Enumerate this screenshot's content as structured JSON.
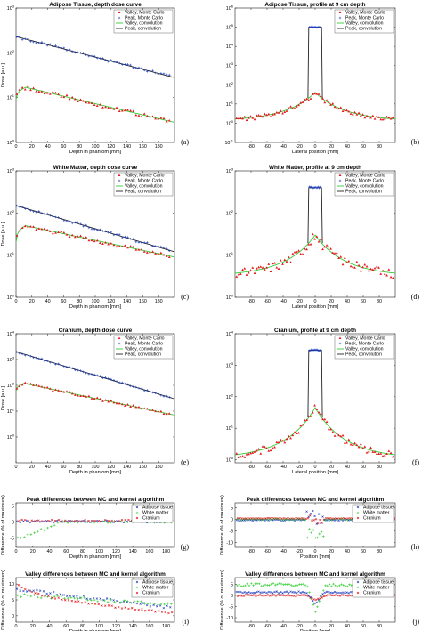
{
  "panels": [
    {
      "id": "a",
      "letter": "(a)",
      "type": "depth",
      "title": "Adipose Tissue, depth dose curve",
      "xlabel": "Depth in phantom [mm]",
      "ylabel": "Dose [a.u.]",
      "xlim": [
        0,
        200
      ],
      "xticks": [
        0,
        20,
        40,
        60,
        80,
        100,
        120,
        140,
        160,
        180
      ],
      "yticks": [
        {
          "v": 1,
          "e": "0"
        },
        {
          "v": 10,
          "e": "1"
        },
        {
          "v": 100,
          "e": "2"
        },
        {
          "v": 1000,
          "e": "3"
        }
      ],
      "ylim": [
        1,
        1000
      ],
      "ylog": true,
      "legend": [
        "Valley, Monte Carlo",
        "Peak, Monte Carlo",
        "Valley, convolution",
        "Peak, convolution"
      ],
      "legend_pos": "top-right",
      "peak": {
        "start": 230,
        "end": 28
      },
      "valley": {
        "start": 9,
        "max": 17,
        "max_at": 12,
        "end": 2.8
      }
    },
    {
      "id": "b",
      "letter": "(b)",
      "type": "profile",
      "title": "Adipose Tissue, profile at 9 cm depth",
      "xlabel": "Lateral position [mm]",
      "ylabel": "",
      "xlim": [
        -100,
        100
      ],
      "xticks": [
        -80,
        -60,
        -40,
        -20,
        0,
        20,
        40,
        60,
        80
      ],
      "yticks": [
        {
          "v": 0.1,
          "e": "-1"
        },
        {
          "v": 1,
          "e": "0"
        },
        {
          "v": 10,
          "e": "1"
        },
        {
          "v": 100,
          "e": "2"
        },
        {
          "v": 1000,
          "e": "3"
        },
        {
          "v": 10000,
          "e": "4"
        },
        {
          "v": 100000,
          "e": "5"
        },
        {
          "v": 1000000,
          "e": "6"
        }
      ],
      "ylim": [
        0.1,
        1000000
      ],
      "ylog": true,
      "legend": [
        "Valley, Monte Carlo",
        "Peak, Monte Carlo",
        "Valley, convolution",
        "Peak, convolution"
      ],
      "legend_pos": "top-right",
      "top_level": 100000,
      "center": 40,
      "edge": 1.5
    },
    {
      "id": "c",
      "letter": "(c)",
      "type": "depth",
      "title": "White Matter, depth dose curve",
      "xlabel": "Depth in phantom [mm]",
      "ylabel": "Dose [a.u.]",
      "xlim": [
        0,
        200
      ],
      "xticks": [
        0,
        20,
        40,
        60,
        80,
        100,
        120,
        140,
        160,
        180
      ],
      "yticks": [
        {
          "v": 1,
          "e": "0"
        },
        {
          "v": 10,
          "e": "1"
        },
        {
          "v": 100,
          "e": "2"
        },
        {
          "v": 1000,
          "e": "3"
        }
      ],
      "ylim": [
        1,
        1000
      ],
      "ylog": true,
      "legend": [
        "Valley, Monte Carlo",
        "Peak, Monte Carlo",
        "Valley, convolution",
        "Peak, convolution"
      ],
      "legend_pos": "top-right",
      "peak": {
        "start": 150,
        "end": 12
      },
      "valley": {
        "start": 20,
        "max": 50,
        "max_at": 12,
        "end": 9
      }
    },
    {
      "id": "d",
      "letter": "(d)",
      "type": "profile",
      "title": "White Matter, profile at 9 cm depth",
      "xlabel": "Lateral position [mm]",
      "ylabel": "",
      "xlim": [
        -100,
        100
      ],
      "xticks": [
        -80,
        -60,
        -40,
        -20,
        0,
        20,
        40,
        60,
        80
      ],
      "yticks": [
        {
          "v": 1,
          "e": "0"
        },
        {
          "v": 10,
          "e": "1"
        },
        {
          "v": 100,
          "e": "2"
        },
        {
          "v": 1000,
          "e": "3"
        }
      ],
      "ylim": [
        1,
        1000
      ],
      "ylog": true,
      "legend": [
        "Valley, Monte Carlo",
        "Peak, Monte Carlo",
        "Valley, convolution",
        "Peak, convolution"
      ],
      "legend_pos": "top-right",
      "top_level": 400,
      "center": 30,
      "edge": 3.5
    },
    {
      "id": "e",
      "letter": "(e)",
      "type": "depth",
      "title": "Cranium, depth dose curve",
      "xlabel": "Depth in phantom [mm]",
      "ylabel": "Dose [a.u.]",
      "xlim": [
        0,
        200
      ],
      "xticks": [
        0,
        20,
        40,
        60,
        80,
        100,
        120,
        140,
        160,
        180
      ],
      "yticks": [
        {
          "v": 1,
          "e": "0"
        },
        {
          "v": 10,
          "e": "1"
        },
        {
          "v": 100,
          "e": "2"
        },
        {
          "v": 1000,
          "e": "3"
        },
        {
          "v": 10000,
          "e": "4"
        }
      ],
      "ylim": [
        0.1,
        10000
      ],
      "ylog": true,
      "legend": [
        "Valley, Monte Carlo",
        "Peak, Monte Carlo",
        "Valley, convolution",
        "Peak, convolution"
      ],
      "legend_pos": "top-right",
      "peak": {
        "start": 2000,
        "end": 30
      },
      "valley": {
        "start": 60,
        "max": 120,
        "max_at": 10,
        "end": 7
      }
    },
    {
      "id": "f",
      "letter": "(f)",
      "type": "profile",
      "title": "Cranium, profile at 9 cm depth",
      "xlabel": "Lateral position [mm]",
      "ylabel": "",
      "xlim": [
        -100,
        100
      ],
      "xticks": [
        -80,
        -60,
        -40,
        -20,
        0,
        20,
        40,
        60,
        80
      ],
      "yticks": [
        {
          "v": 1,
          "e": "0"
        },
        {
          "v": 10,
          "e": "1"
        },
        {
          "v": 100,
          "e": "2"
        },
        {
          "v": 1000,
          "e": "3"
        },
        {
          "v": 10000,
          "e": "4"
        }
      ],
      "ylim": [
        0.8,
        10000
      ],
      "ylog": true,
      "legend": [
        "Valley, Monte Carlo",
        "Peak, Monte Carlo",
        "Valley, convolution",
        "Peak, convolution"
      ],
      "legend_pos": "top-right",
      "top_level": 3000,
      "center": 45,
      "edge": 1.3
    },
    {
      "id": "g",
      "letter": "(g)",
      "type": "diff_depth",
      "kind": "peak",
      "title": "Peak differences between MC and kernel algorithm",
      "xlabel": "Depth in phantom [mm]",
      "ylabel": "Difference (% of maximum)",
      "xlim": [
        0,
        190
      ],
      "xticks": [
        0,
        20,
        40,
        60,
        80,
        100,
        120,
        140,
        160,
        180
      ],
      "yticks": [
        {
          "v": -5,
          "t": "-5"
        },
        {
          "v": 0,
          "t": "0"
        },
        {
          "v": 5,
          "t": "5"
        }
      ],
      "ylim": [
        -8,
        6
      ],
      "ylog": false,
      "legend": [
        "Adipose tissue",
        "White matter",
        "Cranium"
      ],
      "legend_pos": "top-right"
    },
    {
      "id": "h",
      "letter": "(h)",
      "type": "diff_profile",
      "kind": "peak",
      "title": "Peak differences between MC and kernel algorithm",
      "xlabel": "Position [mm]",
      "ylabel": "Difference (% of maximum)",
      "xlim": [
        -100,
        100
      ],
      "xticks": [
        -80,
        -60,
        -40,
        -20,
        0,
        20,
        40,
        60,
        80
      ],
      "yticks": [
        {
          "v": -10,
          "t": "-10"
        },
        {
          "v": -5,
          "t": "-5"
        },
        {
          "v": 0,
          "t": "0"
        },
        {
          "v": 5,
          "t": "5"
        }
      ],
      "ylim": [
        -12,
        7
      ],
      "ylog": false,
      "legend": [
        "Adipose tissue",
        "White matter",
        "Cranium"
      ],
      "legend_pos": "top-right"
    },
    {
      "id": "i",
      "letter": "(i)",
      "type": "diff_depth",
      "kind": "valley",
      "title": "Valley differences between MC and kernel algorithm",
      "xlabel": "Depth in phantom [mm]",
      "ylabel": "Difference (% of maximum)",
      "xlim": [
        0,
        190
      ],
      "xticks": [
        0,
        20,
        40,
        60,
        80,
        100,
        120,
        140,
        160,
        180
      ],
      "yticks": [
        {
          "v": 0,
          "t": "0"
        },
        {
          "v": 5,
          "t": "5"
        },
        {
          "v": 10,
          "t": "10"
        }
      ],
      "ylim": [
        -2,
        12
      ],
      "ylog": false,
      "legend": [
        "Adipose tissue",
        "White matter",
        "Cranium"
      ],
      "legend_pos": "top-right"
    },
    {
      "id": "j",
      "letter": "(j)",
      "type": "diff_profile",
      "kind": "valley",
      "title": "Valley differences between MC and kernel algorithm",
      "xlabel": "Position [mm]",
      "ylabel": "Difference (% of maximum)",
      "xlim": [
        -100,
        100
      ],
      "xticks": [
        -80,
        -60,
        -40,
        -20,
        0,
        20,
        40,
        60,
        80
      ],
      "yticks": [
        {
          "v": -10,
          "t": "-10"
        },
        {
          "v": -5,
          "t": "-5"
        },
        {
          "v": 0,
          "t": "0"
        },
        {
          "v": 5,
          "t": "5"
        }
      ],
      "ylim": [
        -12,
        8
      ],
      "ylog": false,
      "legend": [
        "Adipose tissue",
        "White matter",
        "Cranium"
      ],
      "legend_pos": "top-right"
    }
  ],
  "colors": {
    "valley_mc": "#e41a1c",
    "peak_mc": "#1f3fbf",
    "valley_conv": "#33cc33",
    "peak_conv": "#222222",
    "adipose": "#1f3fbf",
    "white_matter": "#33cc33",
    "cranium": "#e41a1c"
  },
  "chart_data": [
    {
      "type": "line",
      "title": "Adipose Tissue, depth dose curve",
      "xlabel": "Depth in phantom [mm]",
      "ylabel": "Dose [a.u.]",
      "yscale": "log",
      "ylim": [
        1,
        1000
      ],
      "series": [
        {
          "name": "Peak, convolution",
          "x": [
            0,
            200
          ],
          "values": [
            230,
            28
          ]
        },
        {
          "name": "Valley, convolution",
          "x": [
            0,
            12,
            100,
            200
          ],
          "values": [
            9,
            17,
            7,
            2.8
          ]
        }
      ]
    },
    {
      "type": "line",
      "title": "Adipose Tissue, profile at 9 cm depth",
      "xlabel": "Lateral position [mm]",
      "yscale": "log",
      "ylim": [
        0.1,
        1000000
      ],
      "series": [
        {
          "name": "Peak, convolution",
          "x": [
            -7,
            7
          ],
          "values": [
            100000,
            100000
          ]
        },
        {
          "name": "Valley, convolution",
          "x": [
            -100,
            0,
            100
          ],
          "values": [
            1.5,
            40,
            1.5
          ]
        }
      ]
    },
    {
      "type": "line",
      "title": "White Matter, depth dose curve",
      "xlabel": "Depth in phantom [mm]",
      "ylabel": "Dose [a.u.]",
      "yscale": "log",
      "ylim": [
        1,
        1000
      ],
      "series": [
        {
          "name": "Peak, convolution",
          "x": [
            0,
            200
          ],
          "values": [
            150,
            12
          ]
        },
        {
          "name": "Valley, convolution",
          "x": [
            0,
            12,
            200
          ],
          "values": [
            20,
            50,
            9
          ]
        }
      ]
    },
    {
      "type": "line",
      "title": "White Matter, profile at 9 cm depth",
      "xlabel": "Lateral position [mm]",
      "yscale": "log",
      "ylim": [
        1,
        1000
      ],
      "series": [
        {
          "name": "Peak, convolution",
          "x": [
            -7,
            7
          ],
          "values": [
            400,
            400
          ]
        },
        {
          "name": "Valley, convolution",
          "x": [
            -100,
            0,
            100
          ],
          "values": [
            3.5,
            30,
            3.5
          ]
        }
      ]
    },
    {
      "type": "line",
      "title": "Cranium, depth dose curve",
      "xlabel": "Depth in phantom [mm]",
      "ylabel": "Dose [a.u.]",
      "yscale": "log",
      "ylim": [
        0.1,
        10000
      ],
      "series": [
        {
          "name": "Peak, convolution",
          "x": [
            0,
            200
          ],
          "values": [
            2000,
            30
          ]
        },
        {
          "name": "Valley, convolution",
          "x": [
            0,
            10,
            200
          ],
          "values": [
            60,
            120,
            7
          ]
        }
      ]
    },
    {
      "type": "line",
      "title": "Cranium, profile at 9 cm depth",
      "xlabel": "Lateral position [mm]",
      "yscale": "log",
      "ylim": [
        0.8,
        10000
      ],
      "series": [
        {
          "name": "Peak, convolution",
          "x": [
            -7,
            7
          ],
          "values": [
            3000,
            3000
          ]
        },
        {
          "name": "Valley, convolution",
          "x": [
            -100,
            0,
            100
          ],
          "values": [
            1.3,
            45,
            1.3
          ]
        }
      ]
    },
    {
      "type": "scatter",
      "title": "Peak differences between MC and kernel algorithm",
      "xlabel": "Depth in phantom [mm]",
      "ylabel": "Difference (% of maximum)",
      "ylim": [
        -8,
        6
      ],
      "series": [
        {
          "name": "Adipose tissue",
          "x": [
            0,
            190
          ],
          "values": [
            0,
            0
          ]
        },
        {
          "name": "White matter",
          "x": [
            0,
            10,
            40,
            190
          ],
          "values": [
            -6,
            -4,
            -1,
            0
          ]
        },
        {
          "name": "Cranium",
          "x": [
            0,
            190
          ],
          "values": [
            0,
            0
          ]
        }
      ]
    },
    {
      "type": "scatter",
      "title": "Peak differences between MC and kernel algorithm",
      "xlabel": "Position [mm]",
      "ylabel": "Difference (% of maximum)",
      "ylim": [
        -12,
        7
      ],
      "series": [
        {
          "name": "Adipose tissue",
          "x": [
            -100,
            0,
            100
          ],
          "values": [
            -0.5,
            2,
            -0.5
          ]
        },
        {
          "name": "White matter",
          "x": [
            -100,
            0,
            100
          ],
          "values": [
            0,
            -6,
            0
          ]
        },
        {
          "name": "Cranium",
          "x": [
            -100,
            0,
            100
          ],
          "values": [
            0,
            1,
            0
          ]
        }
      ]
    },
    {
      "type": "scatter",
      "title": "Valley differences between MC and kernel algorithm",
      "xlabel": "Depth in phantom [mm]",
      "ylabel": "Difference (% of maximum)",
      "ylim": [
        -2,
        12
      ],
      "series": [
        {
          "name": "Adipose tissue",
          "x": [
            0,
            190
          ],
          "values": [
            8,
            2
          ]
        },
        {
          "name": "White matter",
          "x": [
            0,
            190
          ],
          "values": [
            6,
            3
          ]
        },
        {
          "name": "Cranium",
          "x": [
            0,
            190
          ],
          "values": [
            10,
            0.5
          ]
        }
      ]
    },
    {
      "type": "scatter",
      "title": "Valley differences between MC and kernel algorithm",
      "xlabel": "Position [mm]",
      "ylabel": "Difference (% of maximum)",
      "ylim": [
        -12,
        8
      ],
      "series": [
        {
          "name": "Adipose tissue",
          "x": [
            -100,
            0,
            100
          ],
          "values": [
            1,
            -3,
            1
          ]
        },
        {
          "name": "White matter",
          "x": [
            -100,
            0,
            100
          ],
          "values": [
            4.5,
            -8,
            4.5
          ]
        },
        {
          "name": "Cranium",
          "x": [
            -100,
            0,
            100
          ],
          "values": [
            0,
            -1.5,
            0
          ]
        }
      ]
    }
  ]
}
